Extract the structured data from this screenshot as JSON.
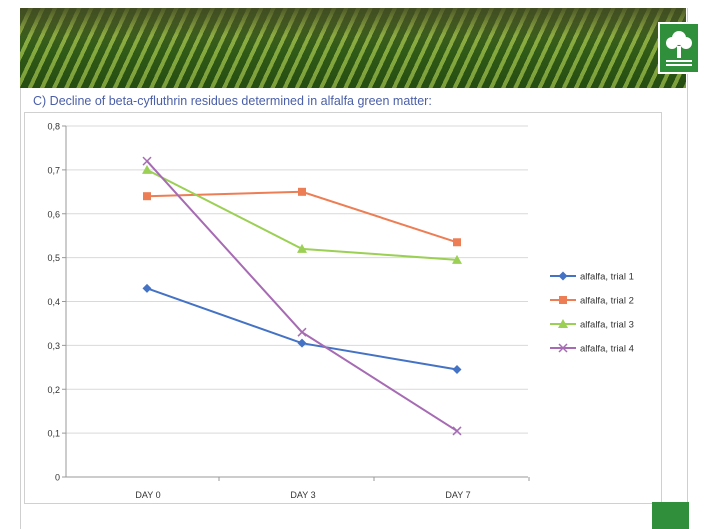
{
  "slide": {
    "title": "C) Decline of beta-cyfluthrin residues determined in alfalfa green matter:"
  },
  "chart_data": {
    "type": "line",
    "title": "",
    "xlabel": "",
    "ylabel": "",
    "categories": [
      "DAY 0",
      "DAY 3",
      "DAY 7"
    ],
    "ylim": [
      0,
      0.8
    ],
    "yticks": [
      "0",
      "0,1",
      "0,2",
      "0,3",
      "0,4",
      "0,5",
      "0,6",
      "0,7",
      "0,8"
    ],
    "grid": true,
    "legend_position": "right",
    "series": [
      {
        "name": "alfalfa, trial 1",
        "values": [
          0.43,
          0.305,
          0.245
        ],
        "color": "#4472c4",
        "marker": "diamond"
      },
      {
        "name": "alfalfa, trial 2",
        "values": [
          0.64,
          0.65,
          0.535
        ],
        "color": "#ed7d54",
        "marker": "square"
      },
      {
        "name": "alfalfa, trial 3",
        "values": [
          0.7,
          0.52,
          0.495
        ],
        "color": "#9bd054",
        "marker": "triangle"
      },
      {
        "name": "alfalfa, trial 4",
        "values": [
          0.72,
          0.33,
          0.105
        ],
        "color": "#a66bb3",
        "marker": "cross"
      }
    ]
  }
}
